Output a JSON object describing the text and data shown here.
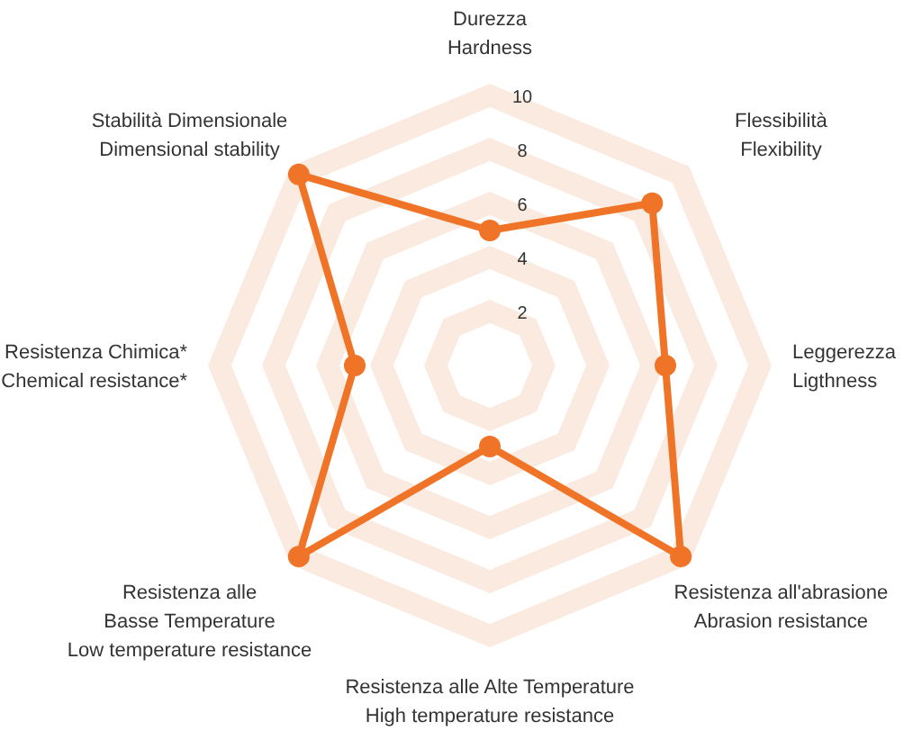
{
  "chart_data": {
    "type": "radar",
    "categories": [
      "Durezza\nHardness",
      "Flessibilità\nFlexibility",
      "Leggerezza\nLigthness",
      "Resistenza all'abrasione\nAbrasion resistance",
      "Resistenza alle Alte Temperature\nHigh temperature resistance",
      "Resistenza alle\nBasse Temperature\nLow temperature resistance",
      "Resistenza Chimica*\nChemical resistance*",
      "Stabilità Dimensionale\nDimensional stability"
    ],
    "series": [
      {
        "color": "#f07427",
        "values": [
          5,
          8.5,
          6.5,
          10,
          3,
          10,
          5,
          10
        ]
      }
    ],
    "ylim": [
      0,
      10
    ],
    "yticks": [
      2,
      4,
      6,
      8,
      10
    ],
    "grid": true,
    "marker": "circle",
    "legend": false
  }
}
